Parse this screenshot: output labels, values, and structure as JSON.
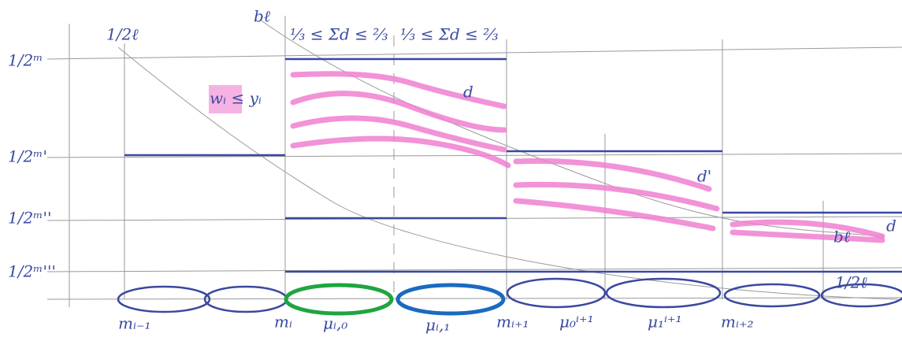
{
  "level_labels": [
    "1/2ᵐ",
    "1/2ᵐ'",
    "1/2ᵐ''",
    "1/2ᵐ'''"
  ],
  "annotations": {
    "half_l_top": "1/2ℓ",
    "b_l_top": "bℓ",
    "sum_left": "⅓ ≤ Σd ≤ ⅔",
    "sum_right": "⅓ ≤ Σd ≤ ⅔",
    "w_le_y": "wᵢ ≤ yᵢ",
    "d": "d",
    "d_prime": "d'",
    "d_double": "d",
    "b_l_right": "bℓ",
    "half_l_bottom": "1/2ℓ"
  },
  "interval_labels": [
    "mᵢ₋₁",
    "mᵢ",
    "μᵢ,₀",
    "μᵢ,₁",
    "mᵢ₊₁",
    "μ₀ⁱ⁺¹",
    "μ₁ⁱ⁺¹",
    "mᵢ₊₂"
  ]
}
